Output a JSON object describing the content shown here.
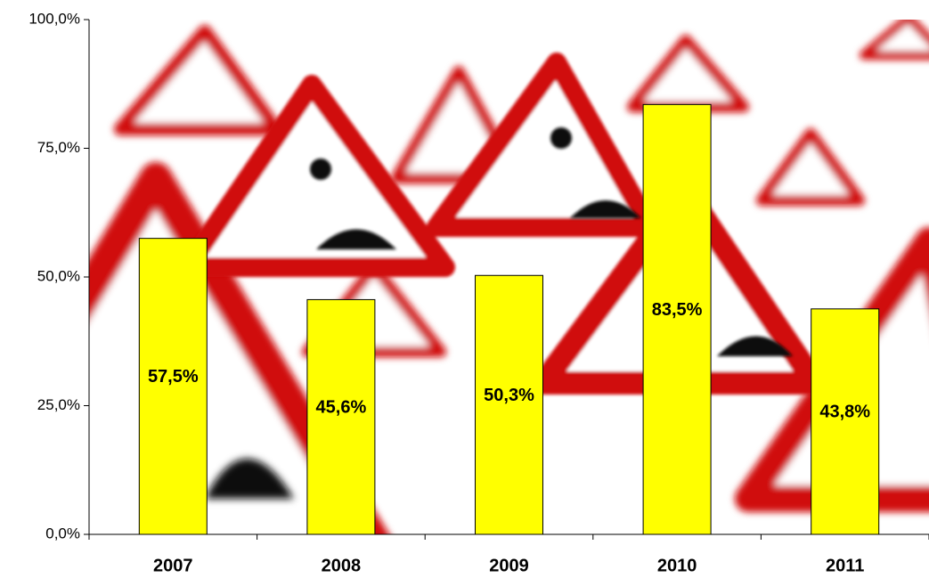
{
  "chart_data": {
    "type": "bar",
    "categories": [
      "2007",
      "2008",
      "2009",
      "2010",
      "2011"
    ],
    "values": [
      57.5,
      45.6,
      50.3,
      83.5,
      43.8
    ],
    "value_labels": [
      "57,5%",
      "45,6%",
      "50,3%",
      "83,5%",
      "43,8%"
    ],
    "color": "#ffff00",
    "ylim": [
      0,
      100
    ],
    "yticks": [
      {
        "value": 0,
        "label": "0,0%"
      },
      {
        "value": 25,
        "label": "25,0%"
      },
      {
        "value": 50,
        "label": "50,0%"
      },
      {
        "value": 75,
        "label": "75,0%"
      },
      {
        "value": 100,
        "label": "100,0%"
      }
    ]
  }
}
